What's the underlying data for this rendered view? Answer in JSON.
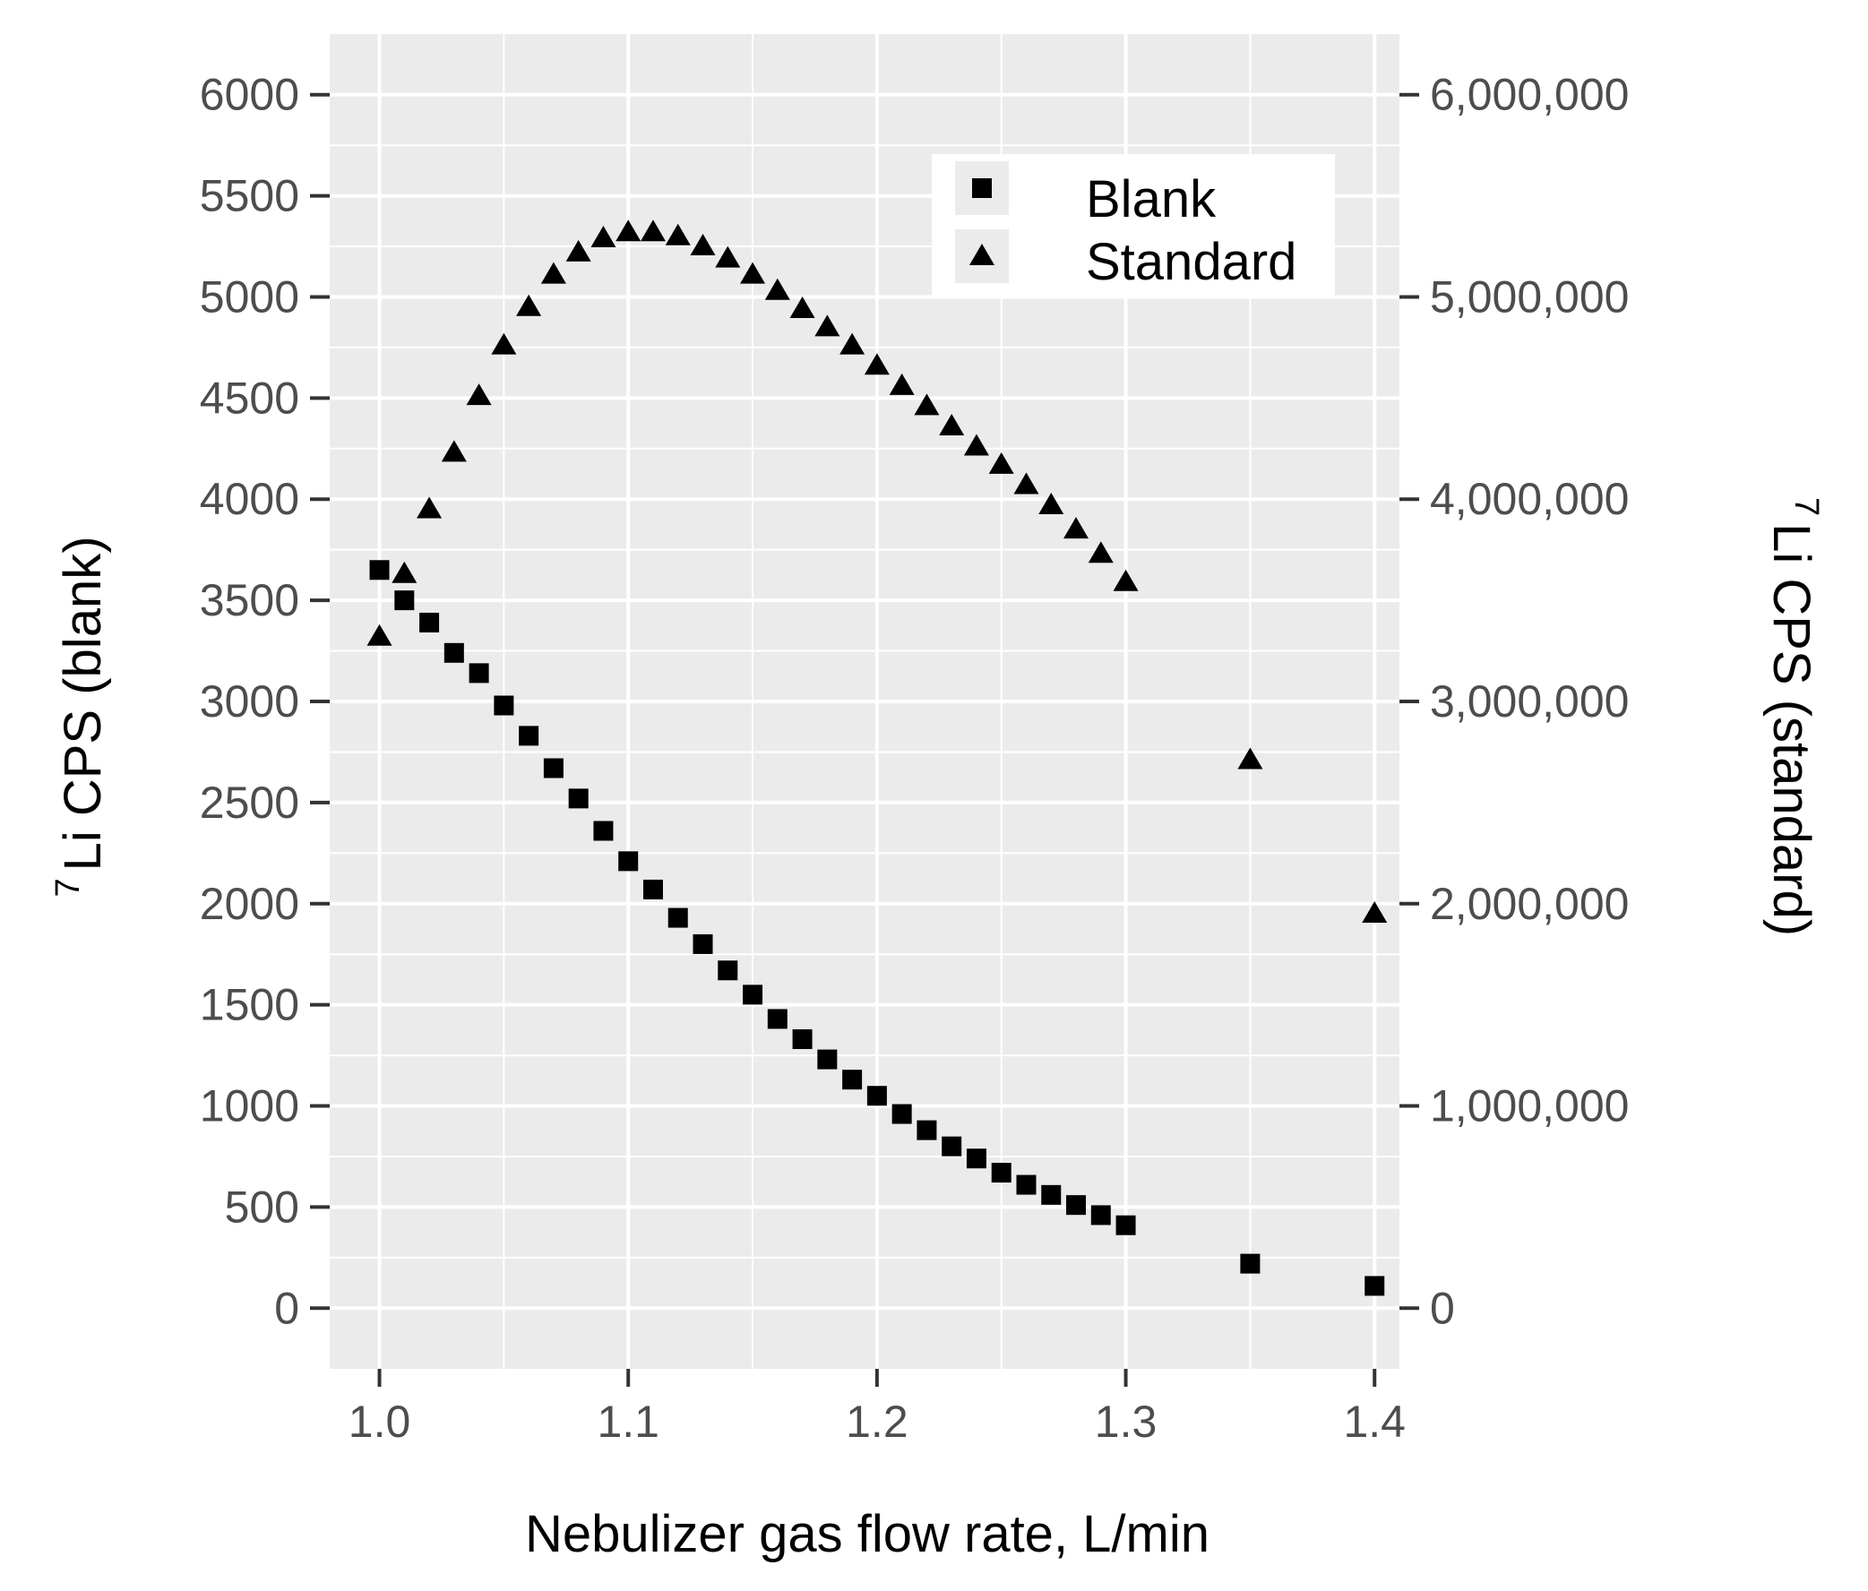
{
  "chart_data": {
    "type": "scatter",
    "xlabel": "Nebulizer gas flow rate, L/min",
    "ylabel_left": {
      "superscript": "7",
      "text": "Li CPS (blank)"
    },
    "ylabel_right": {
      "superscript": "7",
      "text": "Li CPS (standard)"
    },
    "xlim": [
      0.98,
      1.41
    ],
    "ylim_left": [
      -300,
      6300
    ],
    "ylim_right": [
      -300000,
      6300000
    ],
    "x_ticks": [
      1.0,
      1.1,
      1.2,
      1.3,
      1.4
    ],
    "x_tick_labels": [
      "1.0",
      "1.1",
      "1.2",
      "1.3",
      "1.4"
    ],
    "y_left_ticks": [
      0,
      500,
      1000,
      1500,
      2000,
      2500,
      3000,
      3500,
      4000,
      4500,
      5000,
      5500,
      6000
    ],
    "y_left_tick_labels": [
      "0",
      "500",
      "1000",
      "1500",
      "2000",
      "2500",
      "3000",
      "3500",
      "4000",
      "4500",
      "5000",
      "5500",
      "6000"
    ],
    "y_right_ticks": [
      0,
      1000000,
      2000000,
      3000000,
      4000000,
      5000000,
      6000000
    ],
    "y_right_tick_labels": [
      "0",
      "1,000,000",
      "2,000,000",
      "3,000,000",
      "4,000,000",
      "5,000,000",
      "6,000,000"
    ],
    "grid": true,
    "legend_position": "top-right",
    "series": [
      {
        "name": "Blank",
        "axis": "left",
        "marker": "square",
        "color": "#000000",
        "x": [
          1.0,
          1.01,
          1.02,
          1.03,
          1.04,
          1.05,
          1.06,
          1.07,
          1.08,
          1.09,
          1.1,
          1.11,
          1.12,
          1.13,
          1.14,
          1.15,
          1.16,
          1.17,
          1.18,
          1.19,
          1.2,
          1.21,
          1.22,
          1.23,
          1.24,
          1.25,
          1.26,
          1.27,
          1.28,
          1.29,
          1.3,
          1.35,
          1.4
        ],
        "y": [
          3650,
          3500,
          3390,
          3240,
          3140,
          2980,
          2830,
          2670,
          2520,
          2360,
          2210,
          2070,
          1930,
          1800,
          1670,
          1550,
          1430,
          1330,
          1230,
          1130,
          1050,
          960,
          880,
          800,
          740,
          670,
          610,
          560,
          510,
          460,
          410,
          220,
          110
        ]
      },
      {
        "name": "Standard",
        "axis": "right",
        "marker": "triangle",
        "color": "#000000",
        "x": [
          1.0,
          1.01,
          1.02,
          1.03,
          1.04,
          1.05,
          1.06,
          1.07,
          1.08,
          1.09,
          1.1,
          1.11,
          1.12,
          1.13,
          1.14,
          1.15,
          1.16,
          1.17,
          1.18,
          1.19,
          1.2,
          1.21,
          1.22,
          1.23,
          1.24,
          1.25,
          1.26,
          1.27,
          1.28,
          1.29,
          1.3,
          1.35,
          1.4
        ],
        "y": [
          3320000,
          3630000,
          3950000,
          4230000,
          4510000,
          4760000,
          4950000,
          5110000,
          5220000,
          5290000,
          5320000,
          5320000,
          5300000,
          5250000,
          5190000,
          5110000,
          5030000,
          4940000,
          4850000,
          4760000,
          4660000,
          4560000,
          4460000,
          4360000,
          4260000,
          4170000,
          4070000,
          3970000,
          3850000,
          3730000,
          3590000,
          2710000,
          1950000
        ]
      }
    ]
  }
}
